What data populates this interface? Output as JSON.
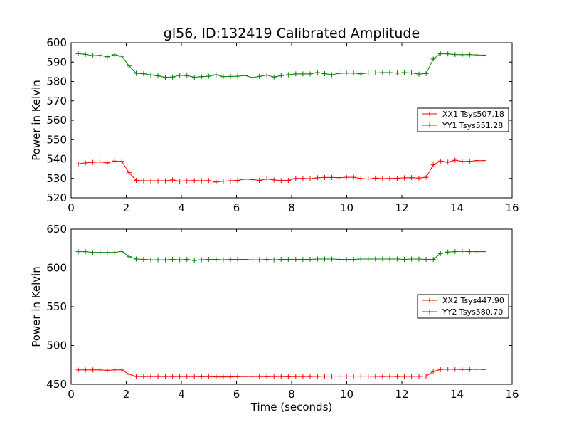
{
  "figure": {
    "title": "gl56, ID:132419 Calibrated Amplitude",
    "xlabel": "Time (seconds)"
  },
  "chart_data": [
    {
      "type": "line",
      "title": "gl56, ID:132419 Calibrated Amplitude",
      "xlabel": "",
      "ylabel": "Power in Kelvin",
      "xlim": [
        0,
        16
      ],
      "ylim": [
        520,
        600
      ],
      "xticks": [
        0,
        2,
        4,
        6,
        8,
        10,
        12,
        14,
        16
      ],
      "yticks": [
        520,
        530,
        540,
        550,
        560,
        570,
        580,
        590,
        600
      ],
      "grid": false,
      "legend_position": "center-right",
      "x": [
        0.26,
        0.52,
        0.79,
        1.05,
        1.31,
        1.58,
        1.84,
        2.1,
        2.36,
        2.63,
        2.89,
        3.15,
        3.42,
        3.68,
        3.94,
        4.2,
        4.47,
        4.73,
        4.99,
        5.26,
        5.52,
        5.78,
        6.04,
        6.31,
        6.57,
        6.83,
        7.1,
        7.36,
        7.62,
        7.88,
        8.15,
        8.41,
        8.67,
        8.94,
        9.2,
        9.46,
        9.72,
        9.99,
        10.25,
        10.51,
        10.78,
        11.04,
        11.3,
        11.56,
        11.83,
        12.09,
        12.35,
        12.62,
        12.88,
        13.14,
        13.4,
        13.67,
        13.93,
        14.19,
        14.46,
        14.72,
        14.98
      ],
      "series": [
        {
          "name": "XX1 Tsys507.18",
          "color": "#ff0000",
          "values": [
            537.5,
            538,
            538.3,
            538.5,
            538,
            539,
            538.8,
            533,
            529,
            528.8,
            528.8,
            528.8,
            528.8,
            529.2,
            528.6,
            528.8,
            528.9,
            528.8,
            528.9,
            528.1,
            528.6,
            528.8,
            529,
            529.6,
            529.4,
            529,
            529.7,
            529.2,
            528.9,
            529,
            530,
            530,
            529.8,
            530.3,
            530.5,
            530.5,
            530.4,
            530.6,
            530.6,
            530,
            529.7,
            530.2,
            529.9,
            530,
            530.1,
            530.3,
            530.4,
            530.2,
            530.6,
            537,
            539,
            538.4,
            539.4,
            538.8,
            538.8,
            539.2,
            539.2
          ]
        },
        {
          "name": "YY1 Tsys551.28",
          "color": "#008000",
          "values": [
            594.3,
            594,
            593.3,
            593.5,
            592.7,
            593.8,
            593,
            588,
            584.2,
            584,
            583.4,
            582.9,
            582.2,
            582.3,
            583.2,
            583,
            582.2,
            582.5,
            582.7,
            583.5,
            582.5,
            582.6,
            582.7,
            583.1,
            582,
            582.6,
            583.3,
            582.3,
            583,
            583.5,
            583.9,
            583.9,
            583.9,
            584.6,
            584,
            583.5,
            584.2,
            584.3,
            584.3,
            583.9,
            584.4,
            584.4,
            584.6,
            584.6,
            584.3,
            584.6,
            584.4,
            583.8,
            584.1,
            591.6,
            594.3,
            594.2,
            593.9,
            593.8,
            593.9,
            593.7,
            593.6
          ]
        }
      ]
    },
    {
      "type": "line",
      "title": "",
      "xlabel": "Time (seconds)",
      "ylabel": "Power in Kelvin",
      "xlim": [
        0,
        16
      ],
      "ylim": [
        450,
        650
      ],
      "xticks": [
        0,
        2,
        4,
        6,
        8,
        10,
        12,
        14,
        16
      ],
      "yticks": [
        450,
        500,
        550,
        600,
        650
      ],
      "grid": false,
      "legend_position": "center-right",
      "x": [
        0.26,
        0.52,
        0.79,
        1.05,
        1.31,
        1.58,
        1.84,
        2.1,
        2.36,
        2.63,
        2.89,
        3.15,
        3.42,
        3.68,
        3.94,
        4.2,
        4.47,
        4.73,
        4.99,
        5.26,
        5.52,
        5.78,
        6.04,
        6.31,
        6.57,
        6.83,
        7.1,
        7.36,
        7.62,
        7.88,
        8.15,
        8.41,
        8.67,
        8.94,
        9.2,
        9.46,
        9.72,
        9.99,
        10.25,
        10.51,
        10.78,
        11.04,
        11.3,
        11.56,
        11.83,
        12.09,
        12.35,
        12.62,
        12.88,
        13.14,
        13.4,
        13.67,
        13.93,
        14.19,
        14.46,
        14.72,
        14.98
      ],
      "series": [
        {
          "name": "XX2 Tsys447.90",
          "color": "#ff0000",
          "values": [
            468.5,
            468.5,
            468.5,
            468.5,
            468,
            468.5,
            468.5,
            463,
            460,
            460,
            460,
            460,
            460,
            460,
            460,
            460,
            460,
            459.8,
            460,
            459.5,
            459.5,
            459.5,
            459.8,
            460,
            460,
            460,
            459.8,
            460,
            460,
            459.8,
            460,
            460,
            460,
            460.2,
            460.5,
            460.5,
            460.5,
            460.5,
            460.5,
            460.5,
            460.5,
            460.2,
            460,
            460.2,
            460,
            460.2,
            460.2,
            460.2,
            460.5,
            466.5,
            469,
            469.5,
            469.3,
            469,
            469,
            469.3,
            469
          ]
        },
        {
          "name": "YY2 Tsys580.70",
          "color": "#008000",
          "values": [
            621,
            621,
            620,
            620,
            620,
            620,
            621.5,
            614.5,
            611.5,
            611,
            610.5,
            610.5,
            610.5,
            611,
            610.5,
            611,
            609.5,
            610.5,
            611,
            611,
            610.5,
            611,
            611,
            611,
            610.5,
            610.5,
            611,
            610.5,
            611,
            611,
            611,
            611,
            611,
            611.5,
            611.5,
            611.5,
            611,
            611,
            611,
            611.5,
            611.5,
            611.5,
            611.5,
            611.5,
            611.5,
            611,
            611.5,
            611.5,
            611,
            611,
            618.5,
            620.5,
            621,
            621.5,
            621,
            621,
            621
          ]
        }
      ]
    }
  ]
}
